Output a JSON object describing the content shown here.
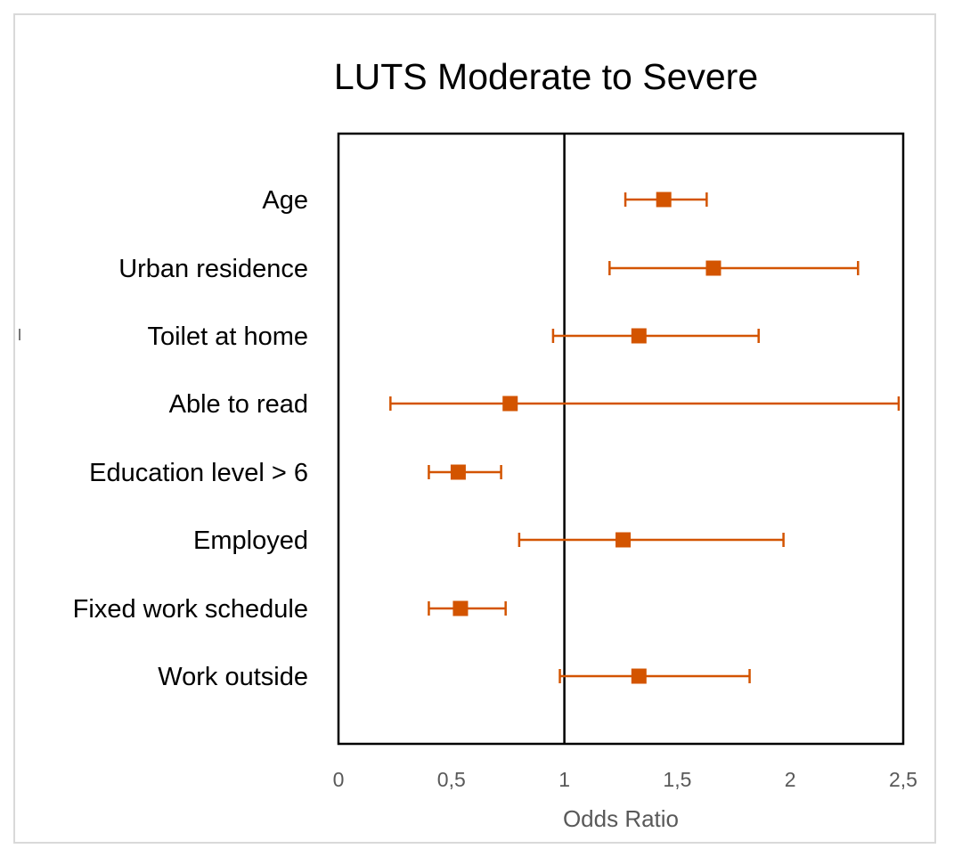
{
  "chart_data": {
    "type": "scatter",
    "title": "LUTS Moderate to Severe",
    "xlabel": "Odds Ratio",
    "ylabel": "",
    "xlim": [
      0,
      2.5
    ],
    "xticks": [
      0,
      0.5,
      1,
      1.5,
      2,
      2.5
    ],
    "xtick_labels": [
      "0",
      "0,5",
      "1",
      "1,5",
      "2",
      "2,5"
    ],
    "reference_line": 1,
    "grid": false,
    "legend": "none",
    "marker_color": "#D35400",
    "categories": [
      "Age",
      "Urban residence",
      "Toilet at home",
      "Able to read",
      "Education level > 6",
      "Employed",
      "Fixed work schedule",
      "Work outside"
    ],
    "points": [
      {
        "label": "Age",
        "or": 1.44,
        "lower": 1.27,
        "upper": 1.63
      },
      {
        "label": "Urban residence",
        "or": 1.66,
        "lower": 1.2,
        "upper": 2.3
      },
      {
        "label": "Toilet at home",
        "or": 1.33,
        "lower": 0.95,
        "upper": 1.86
      },
      {
        "label": "Able to read",
        "or": 0.76,
        "lower": 0.23,
        "upper": 2.48
      },
      {
        "label": "Education level > 6",
        "or": 0.53,
        "lower": 0.4,
        "upper": 0.72
      },
      {
        "label": "Employed",
        "or": 1.26,
        "lower": 0.8,
        "upper": 1.97
      },
      {
        "label": "Fixed work schedule",
        "or": 0.54,
        "lower": 0.4,
        "upper": 0.74
      },
      {
        "label": "Work outside",
        "or": 1.33,
        "lower": 0.98,
        "upper": 1.82
      }
    ]
  }
}
